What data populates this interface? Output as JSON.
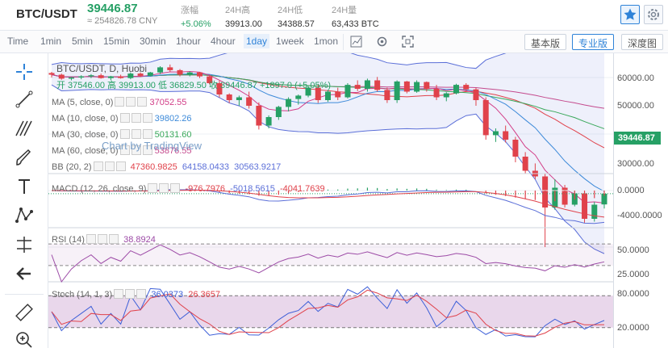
{
  "header": {
    "pair": "BTC/USDT",
    "price": "39446.87",
    "cny": "≈ 254826.78 CNY",
    "stats": [
      {
        "label": "涨幅",
        "value": "+5.06%",
        "up": true
      },
      {
        "label": "24H高",
        "value": "39913.00"
      },
      {
        "label": "24H低",
        "value": "34388.57"
      },
      {
        "label": "24H量",
        "value": "63,433 BTC"
      }
    ]
  },
  "toolbar": {
    "time": "Time",
    "intervals": [
      "1min",
      "5min",
      "15min",
      "30min",
      "1hour",
      "4hour",
      "1day",
      "1week",
      "1mon"
    ],
    "active": "1day",
    "basic": "基本版",
    "pro": "专业版",
    "depth": "深度图"
  },
  "legend": {
    "title": "BTC/USDT, D, Huobi",
    "ohlc": "开 37546.00  高 39913.00  低 36829.50  收 39446.87  +1897.0 (+5.05%)",
    "ma5": {
      "name": "MA (5, close, 0)",
      "value": "37052.55"
    },
    "ma10": {
      "name": "MA (10, close, 0)",
      "value": "39802.26"
    },
    "ma30": {
      "name": "MA (30, close, 0)",
      "value": "50131.60"
    },
    "ma60": {
      "name": "MA (60, close, 0)",
      "value": "53876.55"
    },
    "bb": {
      "name": "BB (20, 2)",
      "v1": "47360.9825",
      "v2": "64158.0433",
      "v3": "30563.9217"
    },
    "macd": {
      "name": "MACD (12, 26, close, 9)",
      "v1": "-976.7976",
      "v2": "-5018.5615",
      "v3": "-4041.7639"
    },
    "rsi": {
      "name": "RSI (14)",
      "value": "38.8924"
    },
    "stoch": {
      "name": "Stoch (14, 1, 3)",
      "v1": "36.0373",
      "v2": "26.3657"
    }
  },
  "watermark": "Chart by TradingView",
  "axis": {
    "main": [
      "60000.00",
      "50000.00",
      "40000.00",
      "30000.00"
    ],
    "current": "39446.87",
    "macd": [
      "0.0000",
      "-4000.0000"
    ],
    "rsi": [
      "50.0000",
      "25.0000"
    ],
    "stoch": [
      "80.0000",
      "20.0000"
    ]
  },
  "colors": {
    "up": "#26a065",
    "down": "#e0424b",
    "bb": "#5b6fd8",
    "ma5": "#d23d87",
    "ma10": "#3d8ad9",
    "ma30": "#39a85a",
    "ma60": "#c44a8d",
    "rsi": "#9c4aa6"
  },
  "icons": [
    "crosshair-icon",
    "trend-line-icon",
    "fib-icon",
    "brush-icon",
    "text-icon",
    "pattern-icon",
    "measure-icon",
    "back-arrow-icon",
    "ruler-icon",
    "zoom-icon"
  ],
  "chart_data": {
    "type": "candlestick",
    "candles": [
      [
        60800,
        61000,
        60000,
        60500
      ],
      [
        60500,
        60700,
        59600,
        59800
      ],
      [
        59800,
        60100,
        59500,
        60000
      ],
      [
        60000,
        60400,
        59700,
        60200
      ],
      [
        60200,
        60600,
        59900,
        60400
      ],
      [
        60400,
        60700,
        59800,
        59900
      ],
      [
        59900,
        60300,
        59500,
        60200
      ],
      [
        60200,
        60500,
        59800,
        59900
      ],
      [
        59900,
        60900,
        59700,
        60700
      ],
      [
        60700,
        60900,
        60100,
        60300
      ],
      [
        60300,
        61000,
        60200,
        60900
      ],
      [
        60900,
        62000,
        60600,
        61800
      ],
      [
        61800,
        62300,
        61000,
        61300
      ],
      [
        61300,
        61500,
        60200,
        60500
      ],
      [
        60500,
        61100,
        60200,
        60900
      ],
      [
        60900,
        61000,
        59900,
        60200
      ],
      [
        60200,
        60500,
        58800,
        59000
      ],
      [
        59000,
        59400,
        56500,
        57000
      ],
      [
        57000,
        57200,
        55500,
        56000
      ],
      [
        56000,
        56800,
        55000,
        56500
      ],
      [
        56500,
        57500,
        54500,
        55000
      ],
      [
        55000,
        55600,
        50800,
        51500
      ],
      [
        51500,
        53300,
        51000,
        53000
      ],
      [
        53000,
        55000,
        52500,
        54800
      ],
      [
        54800,
        56500,
        54000,
        56200
      ],
      [
        56200,
        57000,
        55200,
        56800
      ],
      [
        56800,
        58500,
        56500,
        58200
      ],
      [
        58200,
        58700,
        55500,
        56000
      ],
      [
        56000,
        57800,
        55700,
        57500
      ],
      [
        57500,
        58200,
        56000,
        56500
      ],
      [
        56500,
        59000,
        56300,
        58700
      ],
      [
        58700,
        59500,
        57600,
        58000
      ],
      [
        58000,
        59800,
        57500,
        59500
      ],
      [
        59500,
        60100,
        57500,
        57800
      ],
      [
        57800,
        58200,
        55500,
        56000
      ],
      [
        56000,
        59500,
        55500,
        59300
      ],
      [
        59300,
        59400,
        57200,
        57500
      ],
      [
        57500,
        59500,
        57300,
        59200
      ],
      [
        59200,
        59300,
        57500,
        58000
      ],
      [
        58000,
        58700,
        56000,
        56500
      ],
      [
        56500,
        57400,
        55800,
        57200
      ],
      [
        57200,
        58900,
        57000,
        58700
      ],
      [
        58700,
        59000,
        57600,
        57900
      ],
      [
        57900,
        58200,
        55000,
        56000
      ],
      [
        56000,
        56500,
        49000,
        49800
      ],
      [
        49800,
        51000,
        48600,
        50500
      ],
      [
        50500,
        51500,
        48500,
        49000
      ],
      [
        49000,
        49500,
        45000,
        46000
      ],
      [
        46000,
        46800,
        43000,
        43500
      ],
      [
        43500,
        44800,
        42000,
        42500
      ],
      [
        42500,
        43000,
        30000,
        37000
      ],
      [
        37000,
        42000,
        36600,
        40500
      ],
      [
        40500,
        41000,
        37000,
        37500
      ],
      [
        37500,
        40000,
        37200,
        39500
      ],
      [
        39500,
        39700,
        34300,
        35000
      ],
      [
        35000,
        38000,
        34500,
        37500
      ],
      [
        37546,
        39913,
        36829,
        39446
      ]
    ]
  }
}
